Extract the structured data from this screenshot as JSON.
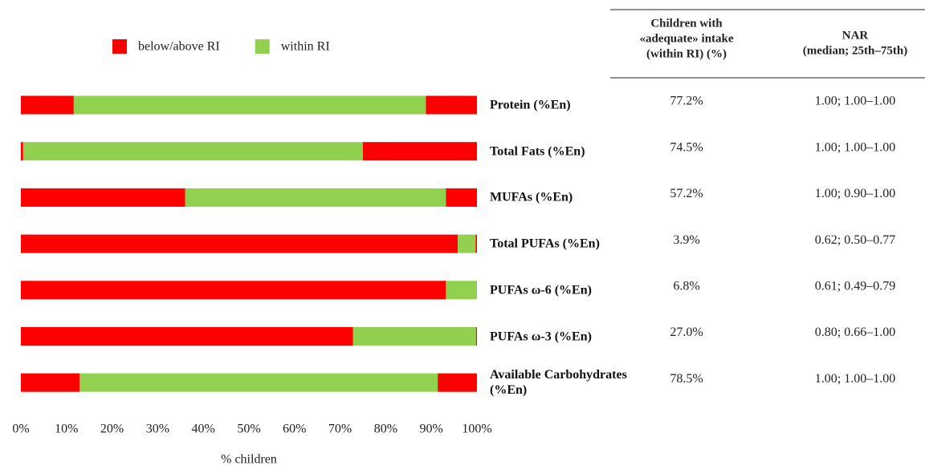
{
  "chart_data": {
    "type": "stacked-bar-horizontal",
    "categories": [
      "Protein (%En)",
      "Total Fats (%En)",
      "MUFAs (%En)",
      "Total PUFAs (%En)",
      "PUFAs ω-6 (%En)",
      "PUFAs ω-3 (%En)",
      "Available Carbohydrates (%En)"
    ],
    "series": [
      {
        "name": "below/above RI",
        "color": "#ff0000",
        "values": [
          11.6,
          0.5,
          36.0,
          95.8,
          93.2,
          72.8,
          12.9
        ]
      },
      {
        "name": "within RI",
        "color": "#92d050",
        "values": [
          77.2,
          74.5,
          57.2,
          3.9,
          6.8,
          27.0,
          78.5
        ]
      },
      {
        "color": "#ff0000",
        "values": [
          11.2,
          25.0,
          6.8,
          0.3,
          0.0,
          0.2,
          8.6
        ]
      }
    ],
    "xlabel": "% children",
    "xlim": [
      0,
      100
    ],
    "xticks": [
      {
        "value": 0,
        "label": "0%"
      },
      {
        "value": 10,
        "label": "10%"
      },
      {
        "value": 20,
        "label": "20%"
      },
      {
        "value": 30,
        "label": "30%"
      },
      {
        "value": 40,
        "label": "40%"
      },
      {
        "value": 50,
        "label": "50%"
      },
      {
        "value": 60,
        "label": "60%"
      },
      {
        "value": 70,
        "label": "70%"
      },
      {
        "value": 80,
        "label": "80%"
      },
      {
        "value": 90,
        "label": "90%"
      },
      {
        "value": 100,
        "label": "100%"
      }
    ],
    "legend": "top"
  },
  "table": {
    "headers": [
      [
        "Children with",
        "«adequate» intake",
        "(within RI) (%)"
      ],
      [
        "NAR",
        "(median; 25th–75th)"
      ]
    ],
    "rows": [
      [
        "77.2%",
        "1.00; 1.00–1.00"
      ],
      [
        "74.5%",
        "1.00; 1.00–1.00"
      ],
      [
        "57.2%",
        "1.00; 0.90–1.00"
      ],
      [
        "3.9%",
        "0.62; 0.50–0.77"
      ],
      [
        "6.8%",
        "0.61; 0.49–0.79"
      ],
      [
        "27.0%",
        "0.80; 0.66–1.00"
      ],
      [
        "78.5%",
        "1.00; 1.00–1.00"
      ]
    ]
  }
}
